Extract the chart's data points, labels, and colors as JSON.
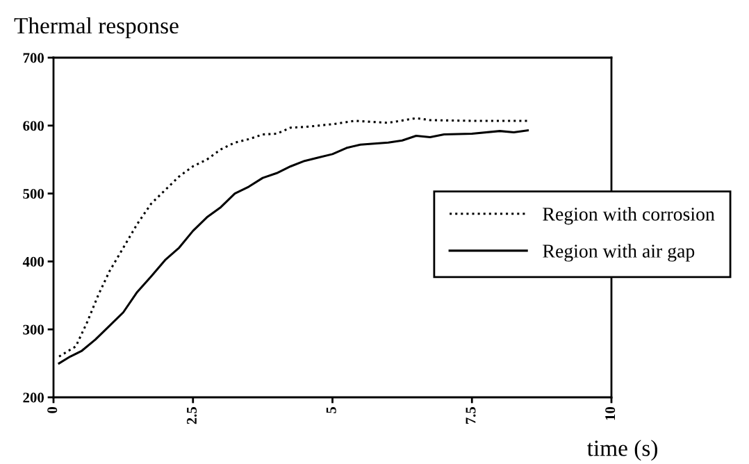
{
  "chart_data": {
    "type": "line",
    "title": "Thermal response",
    "xlabel": "time (s)",
    "xlim": [
      0,
      10
    ],
    "xticks": [
      0,
      2.5,
      5,
      7.5,
      10
    ],
    "ylim": [
      200,
      700
    ],
    "yticks": [
      200,
      300,
      400,
      500,
      600,
      700
    ],
    "grid": false,
    "legend": "right",
    "series": [
      {
        "name": "Region with corrosion",
        "color": "#000000",
        "line_style": "dotted",
        "x": [
          0.1,
          0.4,
          0.6,
          0.8,
          1.0,
          1.25,
          1.5,
          1.75,
          2.0,
          2.25,
          2.5,
          2.75,
          3.0,
          3.25,
          3.5,
          3.75,
          4.0,
          4.25,
          4.5,
          5.0,
          5.4,
          6.0,
          6.5,
          6.75,
          7.5,
          8.0,
          8.5
        ],
        "values": [
          260,
          275,
          310,
          350,
          385,
          420,
          455,
          485,
          505,
          525,
          540,
          550,
          565,
          575,
          580,
          587,
          588,
          597,
          598,
          602,
          607,
          604,
          611,
          608,
          607,
          607,
          607
        ]
      },
      {
        "name": "Region with air gap",
        "color": "#000000",
        "line_style": "solid",
        "x": [
          0.1,
          0.3,
          0.5,
          0.75,
          1.0,
          1.25,
          1.5,
          1.75,
          2.0,
          2.25,
          2.5,
          2.75,
          3.0,
          3.25,
          3.5,
          3.75,
          4.0,
          4.25,
          4.5,
          4.75,
          5.0,
          5.25,
          5.5,
          6.0,
          6.25,
          6.5,
          6.75,
          7.0,
          7.5,
          8.0,
          8.25,
          8.5
        ],
        "values": [
          250,
          260,
          268,
          285,
          305,
          325,
          355,
          378,
          402,
          420,
          445,
          465,
          480,
          500,
          510,
          523,
          530,
          540,
          548,
          553,
          558,
          567,
          572,
          575,
          578,
          585,
          583,
          587,
          588,
          592,
          590,
          593
        ]
      }
    ]
  }
}
